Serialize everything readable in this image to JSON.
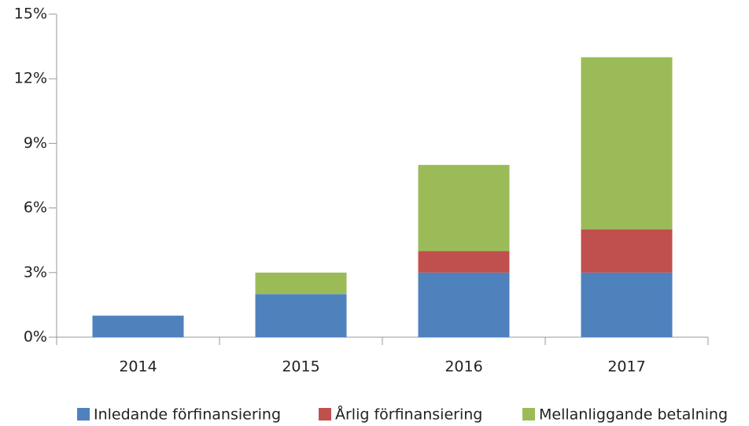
{
  "chart_data": {
    "type": "bar",
    "stacked": true,
    "categories": [
      "2014",
      "2015",
      "2016",
      "2017"
    ],
    "series": [
      {
        "name": "Inledande förfinansiering",
        "color": "#4f81bd",
        "values": [
          1,
          2,
          3,
          3
        ]
      },
      {
        "name": "Årlig förfinansiering",
        "color": "#c0504d",
        "values": [
          0,
          0,
          1,
          2
        ]
      },
      {
        "name": "Mellanliggande betalning",
        "color": "#9bbb59",
        "values": [
          0,
          1,
          4,
          8
        ]
      }
    ],
    "ylim": [
      0,
      15
    ],
    "yticks": [
      {
        "value": 0,
        "label": "0%"
      },
      {
        "value": 3,
        "label": "3%"
      },
      {
        "value": 6,
        "label": "6%"
      },
      {
        "value": 9,
        "label": "9%"
      },
      {
        "value": 12,
        "label": "12%"
      },
      {
        "value": 15,
        "label": "15%"
      }
    ],
    "legend": "bottom"
  }
}
